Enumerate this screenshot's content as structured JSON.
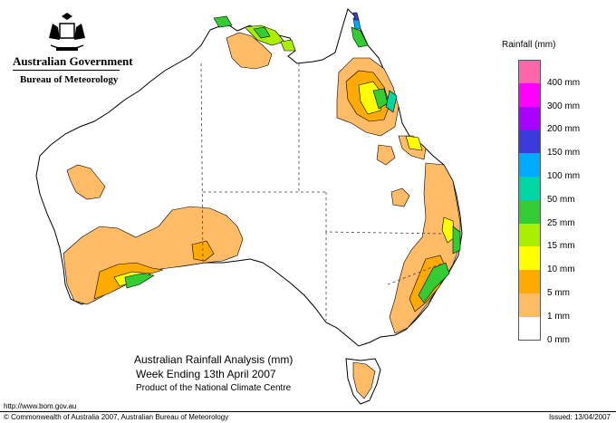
{
  "header": {
    "organisation": "Australian Government",
    "bureau": "Bureau of Meteorology"
  },
  "map": {
    "region": "Australia",
    "legend": {
      "title": "Rainfall (mm)",
      "levels": [
        {
          "label": "",
          "color": "#ff66aa"
        },
        {
          "label": "400 mm",
          "color": "#ff00ff"
        },
        {
          "label": "300 mm",
          "color": "#aa00ff"
        },
        {
          "label": "200 mm",
          "color": "#3a3adf"
        },
        {
          "label": "150 mm",
          "color": "#00aaff"
        },
        {
          "label": "100 mm",
          "color": "#00d6a0"
        },
        {
          "label": "50 mm",
          "color": "#33cc33"
        },
        {
          "label": "25 mm",
          "color": "#aaee00"
        },
        {
          "label": "15 mm",
          "color": "#ffff00"
        },
        {
          "label": "10 mm",
          "color": "#ffaa00"
        },
        {
          "label": "5 mm",
          "color": "#ffbb66"
        },
        {
          "label": "1 mm",
          "color": "#ffffff"
        },
        {
          "label": "0 mm",
          "color": "#ffffff"
        }
      ]
    }
  },
  "caption": {
    "line1": "Australian Rainfall Analysis (mm)",
    "line2": "Week Ending 13th April 2007",
    "line3": "Product of the National Climate Centre"
  },
  "footer": {
    "url": "http://www.bom.gov.au",
    "copyright": "© Commonwealth of Australia 2007, Australian Bureau of Meteorology",
    "issued": "Issued: 13/04/2007"
  }
}
